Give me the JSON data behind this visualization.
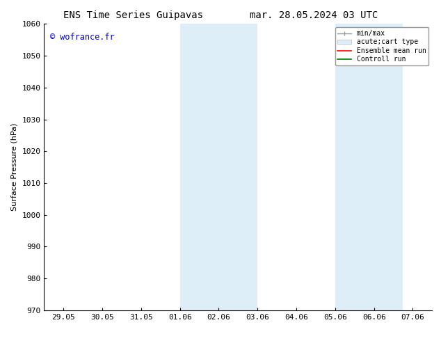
{
  "title_left": "ENS Time Series Guipavas",
  "title_right": "mar. 28.05.2024 03 UTC",
  "ylabel": "Surface Pressure (hPa)",
  "watermark": "© wofrance.fr",
  "watermark_color": "#0000cc",
  "ylim": [
    970,
    1060
  ],
  "yticks": [
    970,
    980,
    990,
    1000,
    1010,
    1020,
    1030,
    1040,
    1050,
    1060
  ],
  "xtick_labels": [
    "29.05",
    "30.05",
    "31.05",
    "01.06",
    "02.06",
    "03.06",
    "04.06",
    "05.06",
    "06.06",
    "07.06"
  ],
  "xtick_positions": [
    0,
    1,
    2,
    3,
    4,
    5,
    6,
    7,
    8,
    9
  ],
  "shade_regions": [
    {
      "xmin": 3.0,
      "xmax": 5.0
    },
    {
      "xmin": 7.0,
      "xmax": 8.75
    }
  ],
  "shade_color": "#ddeef8",
  "background_color": "#ffffff",
  "grid_color": "#cccccc",
  "title_fontsize": 10,
  "axis_fontsize": 8,
  "tick_fontsize": 8
}
